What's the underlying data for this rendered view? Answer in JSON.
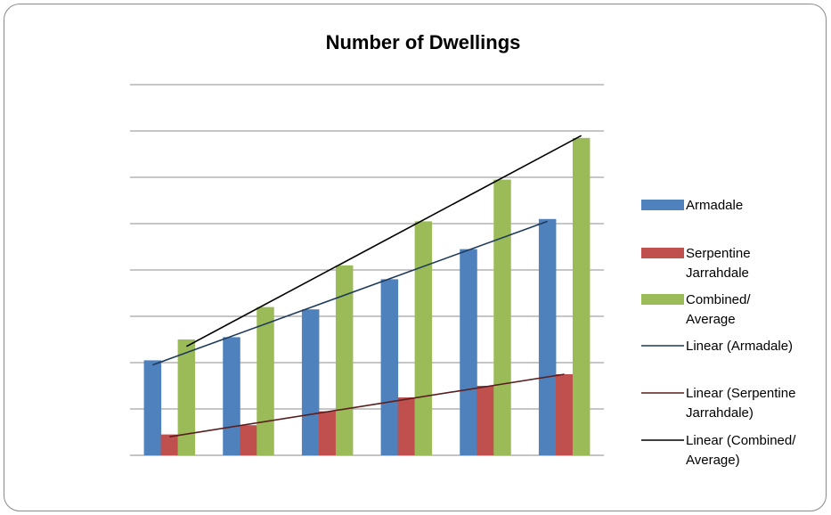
{
  "chart_data": {
    "type": "bar",
    "title": "Number of Dwellings",
    "xlabel": "",
    "ylabel": "",
    "categories": [
      "",
      "",
      "",
      "",
      "",
      ""
    ],
    "ylim": [
      0,
      8
    ],
    "grid": true,
    "legend_position": "right",
    "series": [
      {
        "name": "Armadale",
        "color": "#4F81BD",
        "values": [
          2.05,
          2.55,
          3.15,
          3.8,
          4.45,
          5.1
        ]
      },
      {
        "name": "Serpentine Jarrahdale",
        "color": "#C0504D",
        "values": [
          0.45,
          0.65,
          0.95,
          1.25,
          1.5,
          1.75
        ]
      },
      {
        "name": "Combined/ Average",
        "color": "#9BBB59",
        "values": [
          2.5,
          3.2,
          4.1,
          5.05,
          5.95,
          6.85
        ]
      }
    ],
    "trendlines": [
      {
        "name": "Linear (Armadale)",
        "color": "#1F3A5A",
        "start": 1.95,
        "end": 5.05
      },
      {
        "name": "Linear (Serpentine Jarrahdale)",
        "color": "#5A1E1E",
        "start": 0.4,
        "end": 1.75
      },
      {
        "name": "Linear (Combined/ Average)",
        "color": "#000000",
        "start": 2.35,
        "end": 6.9
      }
    ]
  }
}
